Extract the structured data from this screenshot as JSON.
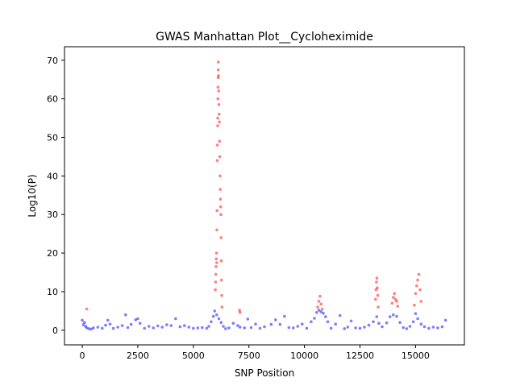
{
  "chart_data": {
    "type": "scatter",
    "title": "GWAS Manhattan Plot__Cycloheximide",
    "xlabel": "SNP Position",
    "ylabel": "Log10(P)",
    "xlim": [
      -800,
      17200
    ],
    "ylim": [
      -3.8,
      73.5
    ],
    "xticks": [
      0,
      2500,
      5000,
      7500,
      10000,
      12500,
      15000
    ],
    "xtick_labels": [
      "0",
      "2500",
      "5000",
      "7500",
      "10000",
      "12500",
      "15000"
    ],
    "yticks": [
      0,
      10,
      20,
      30,
      40,
      50,
      60,
      70
    ],
    "ytick_labels": [
      "0",
      "10",
      "20",
      "30",
      "40",
      "50",
      "60",
      "70"
    ],
    "grid": false,
    "legend": "none",
    "series": [
      {
        "color": "#0000ff",
        "significance": "below threshold",
        "points": [
          [
            0,
            2.6
          ],
          [
            50,
            1.4
          ],
          [
            100,
            2.0
          ],
          [
            150,
            1.0
          ],
          [
            200,
            0.6
          ],
          [
            300,
            0.4
          ],
          [
            400,
            0.3
          ],
          [
            500,
            0.6
          ],
          [
            700,
            0.8
          ],
          [
            900,
            0.5
          ],
          [
            1050,
            1.3
          ],
          [
            1150,
            2.6
          ],
          [
            1250,
            1.6
          ],
          [
            1400,
            0.5
          ],
          [
            1600,
            0.8
          ],
          [
            1800,
            1.2
          ],
          [
            1950,
            4.0
          ],
          [
            2050,
            0.7
          ],
          [
            2200,
            1.5
          ],
          [
            2400,
            2.7
          ],
          [
            2500,
            3.0
          ],
          [
            2600,
            1.8
          ],
          [
            2800,
            0.5
          ],
          [
            3000,
            1.0
          ],
          [
            3200,
            0.6
          ],
          [
            3400,
            1.1
          ],
          [
            3600,
            0.8
          ],
          [
            3800,
            1.4
          ],
          [
            4000,
            1.2
          ],
          [
            4200,
            3.0
          ],
          [
            4400,
            0.9
          ],
          [
            4600,
            1.2
          ],
          [
            4800,
            0.8
          ],
          [
            5000,
            0.5
          ],
          [
            5200,
            0.6
          ],
          [
            5400,
            0.7
          ],
          [
            5600,
            0.5
          ],
          [
            5700,
            1.0
          ],
          [
            5800,
            2.2
          ],
          [
            5900,
            3.6
          ],
          [
            5960,
            5.0
          ],
          [
            6050,
            4.0
          ],
          [
            6150,
            3.0
          ],
          [
            6250,
            2.0
          ],
          [
            6350,
            1.0
          ],
          [
            6450,
            0.4
          ],
          [
            6600,
            0.6
          ],
          [
            6800,
            1.8
          ],
          [
            7000,
            1.2
          ],
          [
            7100,
            0.8
          ],
          [
            7300,
            0.6
          ],
          [
            7450,
            2.9
          ],
          [
            7600,
            0.7
          ],
          [
            7800,
            1.6
          ],
          [
            8000,
            0.5
          ],
          [
            8200,
            0.9
          ],
          [
            8500,
            1.5
          ],
          [
            8700,
            2.7
          ],
          [
            8900,
            1.5
          ],
          [
            9100,
            3.6
          ],
          [
            9300,
            0.7
          ],
          [
            9500,
            0.6
          ],
          [
            9700,
            1.0
          ],
          [
            9900,
            1.6
          ],
          [
            10100,
            0.5
          ],
          [
            10300,
            2.2
          ],
          [
            10450,
            3.1
          ],
          [
            10550,
            4.6
          ],
          [
            10650,
            5.2
          ],
          [
            10750,
            4.8
          ],
          [
            10850,
            4.4
          ],
          [
            10950,
            3.5
          ],
          [
            11050,
            2.2
          ],
          [
            11200,
            0.5
          ],
          [
            11400,
            1.6
          ],
          [
            11600,
            3.8
          ],
          [
            11800,
            0.4
          ],
          [
            11950,
            0.8
          ],
          [
            12100,
            2.4
          ],
          [
            12300,
            0.6
          ],
          [
            12500,
            0.5
          ],
          [
            12700,
            0.8
          ],
          [
            12900,
            1.3
          ],
          [
            13100,
            2.2
          ],
          [
            13250,
            3.5
          ],
          [
            13350,
            1.8
          ],
          [
            13500,
            0.9
          ],
          [
            13700,
            1.9
          ],
          [
            13850,
            3.5
          ],
          [
            14000,
            4.0
          ],
          [
            14150,
            3.6
          ],
          [
            14300,
            2.0
          ],
          [
            14450,
            0.7
          ],
          [
            14600,
            0.4
          ],
          [
            14750,
            1.0
          ],
          [
            14900,
            2.2
          ],
          [
            15000,
            4.3
          ],
          [
            15100,
            3.0
          ],
          [
            15250,
            1.6
          ],
          [
            15400,
            0.9
          ],
          [
            15600,
            0.5
          ],
          [
            15800,
            0.8
          ],
          [
            16000,
            0.6
          ],
          [
            16200,
            0.9
          ],
          [
            16350,
            2.6
          ]
        ]
      },
      {
        "color": "#ff0000",
        "significance": "above threshold",
        "points": [
          [
            200,
            5.5
          ],
          [
            5990,
            10.5
          ],
          [
            6000,
            12.5
          ],
          [
            6010,
            14.5
          ],
          [
            6020,
            16.5
          ],
          [
            6030,
            18.5
          ],
          [
            6040,
            20.0
          ],
          [
            6050,
            17.5
          ],
          [
            6060,
            26.0
          ],
          [
            6065,
            31.0
          ],
          [
            6075,
            44.0
          ],
          [
            6085,
            48.0
          ],
          [
            6095,
            53.0
          ],
          [
            6100,
            55.0
          ],
          [
            6105,
            60.0
          ],
          [
            6110,
            63.0
          ],
          [
            6115,
            65.5
          ],
          [
            6120,
            67.5
          ],
          [
            6125,
            69.5
          ],
          [
            6130,
            66.0
          ],
          [
            6140,
            62.0
          ],
          [
            6150,
            58.5
          ],
          [
            6160,
            56.0
          ],
          [
            6170,
            54.0
          ],
          [
            6180,
            49.0
          ],
          [
            6190,
            45.0
          ],
          [
            6200,
            40.0
          ],
          [
            6210,
            36.5
          ],
          [
            6220,
            34.0
          ],
          [
            6230,
            32.0
          ],
          [
            6240,
            30.0
          ],
          [
            6250,
            24.0
          ],
          [
            6260,
            18.0
          ],
          [
            6270,
            13.0
          ],
          [
            6280,
            9.0
          ],
          [
            6290,
            6.0
          ],
          [
            7080,
            5.2
          ],
          [
            7100,
            4.6
          ],
          [
            10600,
            6.0
          ],
          [
            10650,
            7.5
          ],
          [
            10700,
            8.8
          ],
          [
            10750,
            6.8
          ],
          [
            10800,
            5.5
          ],
          [
            13200,
            8.0
          ],
          [
            13220,
            10.5
          ],
          [
            13240,
            12.5
          ],
          [
            13260,
            13.5
          ],
          [
            13280,
            11.0
          ],
          [
            13300,
            9.0
          ],
          [
            13320,
            6.0
          ],
          [
            13950,
            7.0
          ],
          [
            14000,
            8.5
          ],
          [
            14050,
            9.5
          ],
          [
            14100,
            8.0
          ],
          [
            14150,
            7.5
          ],
          [
            14200,
            6.2
          ],
          [
            14950,
            6.5
          ],
          [
            15000,
            9.5
          ],
          [
            15050,
            11.5
          ],
          [
            15100,
            13.0
          ],
          [
            15150,
            14.5
          ],
          [
            15200,
            10.5
          ],
          [
            15250,
            7.5
          ]
        ]
      }
    ]
  }
}
